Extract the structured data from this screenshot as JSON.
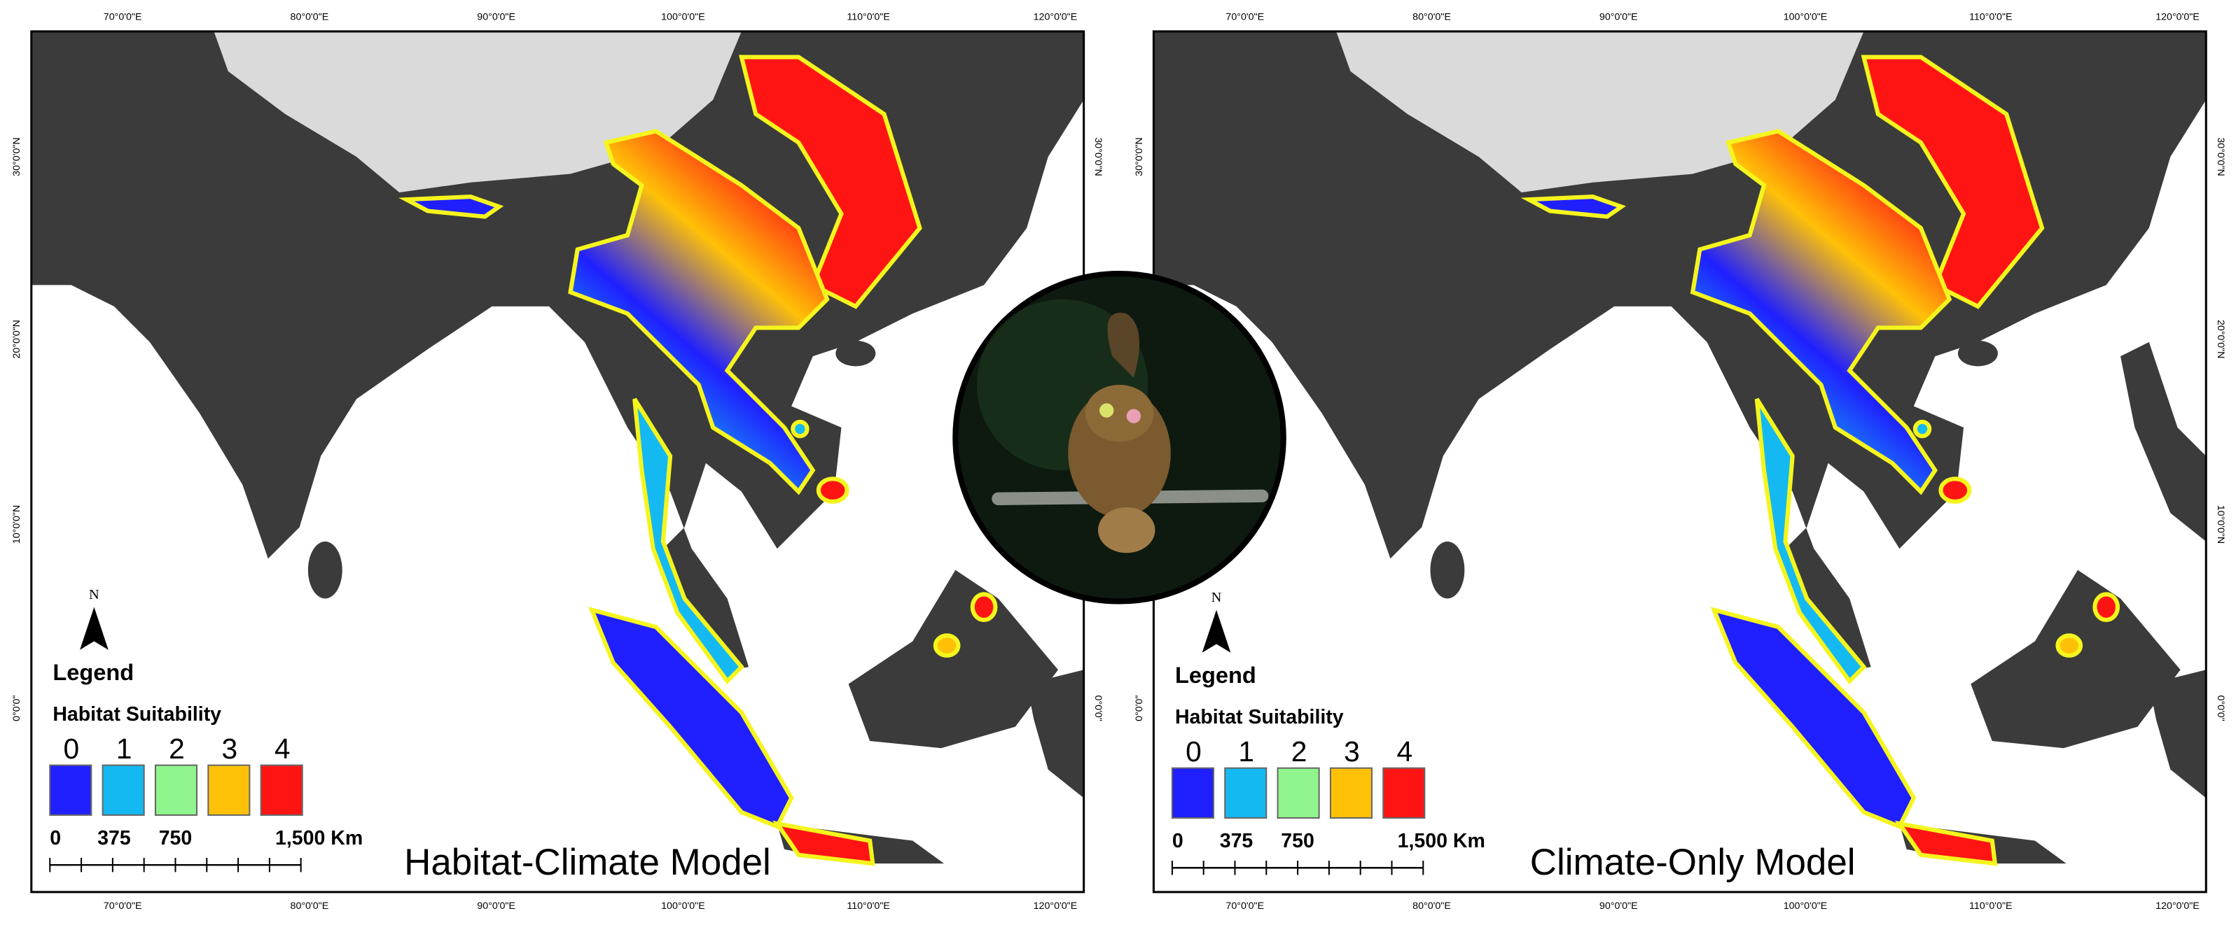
{
  "panels": [
    {
      "title": "Habitat-Climate Model",
      "north": "N",
      "legend_title": "Legend",
      "legend_subtitle": "Habitat Suitability",
      "classes": [
        {
          "label": "0",
          "color": "#1f1fff"
        },
        {
          "label": "1",
          "color": "#14b9f2"
        },
        {
          "label": "2",
          "color": "#8ff58c"
        },
        {
          "label": "3",
          "color": "#ffc107"
        },
        {
          "label": "4",
          "color": "#ff1414"
        }
      ],
      "scale_labels": [
        "0",
        "375",
        "750",
        "1,500 Km"
      ],
      "lon_labels": [
        "70°0'0\"E",
        "80°0'0\"E",
        "90°0'0\"E",
        "100°0'0\"E",
        "110°0'0\"E",
        "120°0'0\"E"
      ],
      "lat_labels": [
        "30°0'0\"N",
        "20°0'0\"N",
        "10°0'0\"N",
        "0°0'0\""
      ]
    },
    {
      "title": "Climate-Only Model",
      "north": "N",
      "legend_title": "Legend",
      "legend_subtitle": "Habitat Suitability",
      "classes": [
        {
          "label": "0",
          "color": "#1f1fff"
        },
        {
          "label": "1",
          "color": "#14b9f2"
        },
        {
          "label": "2",
          "color": "#8ff58c"
        },
        {
          "label": "3",
          "color": "#ffc107"
        },
        {
          "label": "4",
          "color": "#ff1414"
        }
      ],
      "scale_labels": [
        "0",
        "375",
        "750",
        "1,500 Km"
      ],
      "lon_labels": [
        "70°0'0\"E",
        "80°0'0\"E",
        "90°0'0\"E",
        "100°0'0\"E",
        "110°0'0\"E",
        "120°0'0\"E"
      ],
      "lat_labels": [
        "30°0'0\"N",
        "20°0'0\"N",
        "10°0'0\"N",
        "0°0'0\""
      ]
    }
  ]
}
